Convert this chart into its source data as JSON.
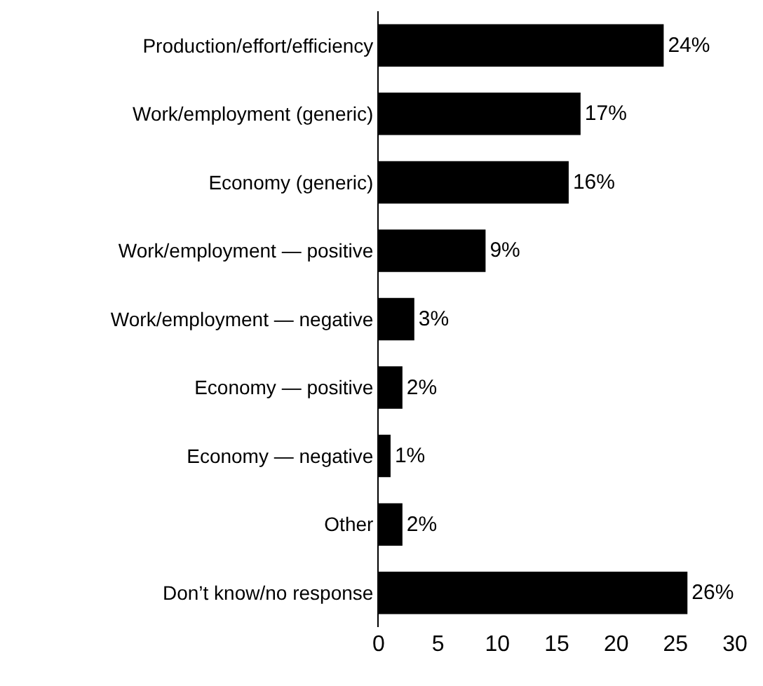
{
  "chart_data": {
    "type": "bar",
    "orientation": "horizontal",
    "categories": [
      "Production/effort/efficiency",
      "Work/employment (generic)",
      "Economy (generic)",
      "Work/employment — positive",
      "Work/employment — negative",
      "Economy — positive",
      "Economy — negative",
      "Other",
      "Don’t know/no response"
    ],
    "values": [
      24,
      17,
      16,
      9,
      3,
      2,
      1,
      2,
      26
    ],
    "value_labels": [
      "24%",
      "17%",
      "16%",
      "9%",
      "3%",
      "2%",
      "1%",
      "2%",
      "26%"
    ],
    "color": "#000000",
    "xlim": [
      0,
      30
    ],
    "xticks": [
      0,
      5,
      10,
      15,
      20,
      25,
      30
    ],
    "grid": false
  }
}
